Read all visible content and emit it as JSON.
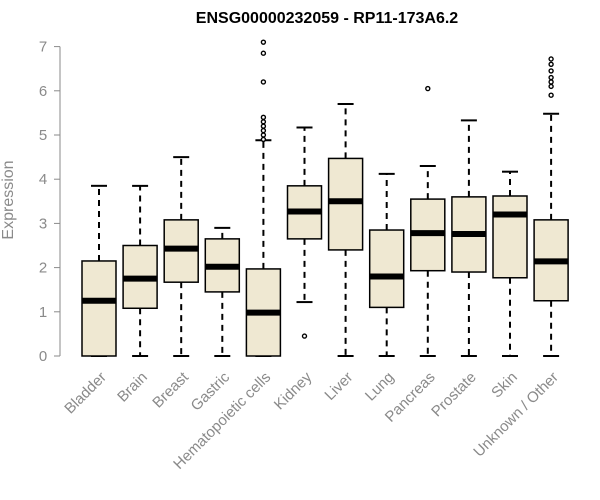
{
  "chart_data": {
    "type": "boxplot",
    "title": "ENSG00000232059 - RP11-173A6.2",
    "ylabel": "Expression",
    "xlabel": "",
    "ylim": [
      0,
      7.1
    ],
    "yticks": [
      0,
      1,
      2,
      3,
      4,
      5,
      6,
      7
    ],
    "box_fill": "#efe8d2",
    "categories": [
      "Bladder",
      "Brain",
      "Breast",
      "Gastric",
      "Hematopoietic cells",
      "Kidney",
      "Liver",
      "Lung",
      "Pancreas",
      "Prostate",
      "Skin",
      "Unknown / Other"
    ],
    "boxes": [
      {
        "whisker_low": 0,
        "q1": 0,
        "median": 1.25,
        "q3": 2.15,
        "whisker_high": 3.85,
        "outliers": []
      },
      {
        "whisker_low": 0,
        "q1": 1.08,
        "median": 1.75,
        "q3": 2.5,
        "whisker_high": 3.85,
        "outliers": []
      },
      {
        "whisker_low": 0,
        "q1": 1.67,
        "median": 2.43,
        "q3": 3.08,
        "whisker_high": 4.5,
        "outliers": []
      },
      {
        "whisker_low": 0,
        "q1": 1.45,
        "median": 2.02,
        "q3": 2.65,
        "whisker_high": 2.9,
        "outliers": []
      },
      {
        "whisker_low": 0,
        "q1": 0,
        "median": 0.98,
        "q3": 1.97,
        "whisker_high": 4.88,
        "outliers": [
          4.9,
          5.0,
          5.1,
          5.2,
          5.3,
          5.4,
          6.2,
          6.85,
          7.1
        ]
      },
      {
        "whisker_low": 1.22,
        "q1": 2.65,
        "median": 3.27,
        "q3": 3.85,
        "whisker_high": 5.17,
        "outliers": [
          0.45
        ]
      },
      {
        "whisker_low": 0,
        "q1": 2.4,
        "median": 3.5,
        "q3": 4.47,
        "whisker_high": 5.7,
        "outliers": []
      },
      {
        "whisker_low": 0,
        "q1": 1.1,
        "median": 1.8,
        "q3": 2.85,
        "whisker_high": 4.12,
        "outliers": []
      },
      {
        "whisker_low": 0,
        "q1": 1.93,
        "median": 2.78,
        "q3": 3.55,
        "whisker_high": 4.3,
        "outliers": [
          6.05
        ]
      },
      {
        "whisker_low": 0,
        "q1": 1.9,
        "median": 2.76,
        "q3": 3.6,
        "whisker_high": 5.33,
        "outliers": []
      },
      {
        "whisker_low": 0,
        "q1": 1.77,
        "median": 3.2,
        "q3": 3.62,
        "whisker_high": 4.17,
        "outliers": []
      },
      {
        "whisker_low": 0,
        "q1": 1.25,
        "median": 2.14,
        "q3": 3.08,
        "whisker_high": 5.48,
        "outliers": [
          5.9,
          6.1,
          6.2,
          6.3,
          6.45,
          6.6,
          6.72
        ]
      }
    ]
  }
}
